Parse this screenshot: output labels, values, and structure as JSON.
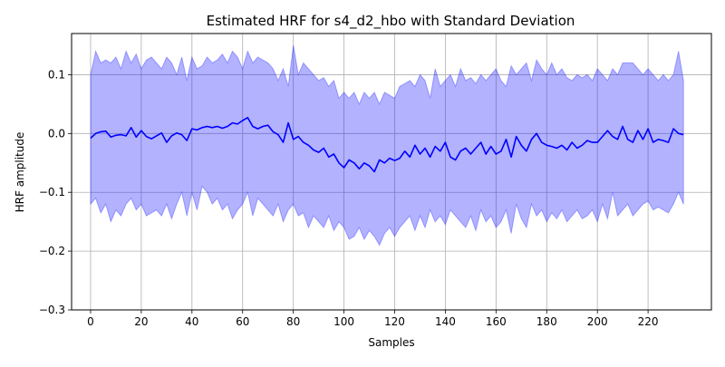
{
  "chart_data": {
    "type": "line",
    "title": "Estimated HRF for s4_d2_hbo with Standard Deviation",
    "xlabel": "Samples",
    "ylabel": "HRF amplitude",
    "xlim": [
      -7.5,
      245
    ],
    "ylim": [
      -0.3,
      0.17
    ],
    "xticks": [
      0,
      20,
      40,
      60,
      80,
      100,
      120,
      140,
      160,
      180,
      200,
      220
    ],
    "yticks": [
      -0.3,
      -0.2,
      -0.1,
      0.0,
      0.1
    ],
    "ytick_labels": [
      "−0.3",
      "−0.2",
      "−0.1",
      "0.0",
      "0.1"
    ],
    "grid": true,
    "series": [
      {
        "role": "mean",
        "color": "#0000ff",
        "x": [
          0,
          2,
          4,
          6,
          8,
          10,
          12,
          14,
          16,
          18,
          20,
          22,
          24,
          26,
          28,
          30,
          32,
          34,
          36,
          38,
          40,
          42,
          44,
          46,
          48,
          50,
          52,
          54,
          56,
          58,
          60,
          62,
          64,
          66,
          68,
          70,
          72,
          74,
          76,
          78,
          80,
          82,
          84,
          86,
          88,
          90,
          92,
          94,
          96,
          98,
          100,
          102,
          104,
          106,
          108,
          110,
          112,
          114,
          116,
          118,
          120,
          122,
          124,
          126,
          128,
          130,
          132,
          134,
          136,
          138,
          140,
          142,
          144,
          146,
          148,
          150,
          152,
          154,
          156,
          158,
          160,
          162,
          164,
          166,
          168,
          170,
          172,
          174,
          176,
          178,
          180,
          182,
          184,
          186,
          188,
          190,
          192,
          194,
          196,
          198,
          200,
          202,
          204,
          206,
          208,
          210,
          212,
          214,
          216,
          218,
          220,
          222,
          224,
          226,
          228,
          230,
          232,
          234
        ],
        "y": [
          -0.008,
          0.0,
          0.003,
          0.004,
          -0.006,
          -0.003,
          -0.002,
          -0.004,
          0.01,
          -0.006,
          0.005,
          -0.005,
          -0.009,
          -0.004,
          0.001,
          -0.015,
          -0.004,
          0.001,
          -0.002,
          -0.012,
          0.008,
          0.006,
          0.01,
          0.012,
          0.01,
          0.012,
          0.009,
          0.012,
          0.018,
          0.016,
          0.022,
          0.027,
          0.012,
          0.008,
          0.012,
          0.014,
          0.003,
          -0.002,
          -0.015,
          0.018,
          -0.01,
          -0.005,
          -0.015,
          -0.02,
          -0.028,
          -0.032,
          -0.025,
          -0.04,
          -0.035,
          -0.05,
          -0.058,
          -0.045,
          -0.05,
          -0.06,
          -0.05,
          -0.055,
          -0.065,
          -0.045,
          -0.05,
          -0.042,
          -0.046,
          -0.042,
          -0.03,
          -0.04,
          -0.02,
          -0.035,
          -0.025,
          -0.04,
          -0.022,
          -0.03,
          -0.015,
          -0.04,
          -0.045,
          -0.03,
          -0.025,
          -0.035,
          -0.025,
          -0.015,
          -0.035,
          -0.022,
          -0.035,
          -0.03,
          -0.01,
          -0.04,
          -0.005,
          -0.02,
          -0.03,
          -0.01,
          0.0,
          -0.015,
          -0.02,
          -0.022,
          -0.025,
          -0.02,
          -0.028,
          -0.015,
          -0.025,
          -0.02,
          -0.012,
          -0.015,
          -0.015,
          -0.005,
          0.005,
          -0.005,
          -0.01,
          0.012,
          -0.01,
          -0.015,
          0.005,
          -0.01,
          0.008,
          -0.015,
          -0.01,
          -0.012,
          -0.015,
          0.008,
          0.0,
          -0.002
        ]
      },
      {
        "role": "std-band-upper",
        "color": "#0000ff",
        "opacity": 0.3,
        "x": [
          0,
          2,
          4,
          6,
          8,
          10,
          12,
          14,
          16,
          18,
          20,
          22,
          24,
          26,
          28,
          30,
          32,
          34,
          36,
          38,
          40,
          42,
          44,
          46,
          48,
          50,
          52,
          54,
          56,
          58,
          60,
          62,
          64,
          66,
          68,
          70,
          72,
          74,
          76,
          78,
          80,
          82,
          84,
          86,
          88,
          90,
          92,
          94,
          96,
          98,
          100,
          102,
          104,
          106,
          108,
          110,
          112,
          114,
          116,
          118,
          120,
          122,
          124,
          126,
          128,
          130,
          132,
          134,
          136,
          138,
          140,
          142,
          144,
          146,
          148,
          150,
          152,
          154,
          156,
          158,
          160,
          162,
          164,
          166,
          168,
          170,
          172,
          174,
          176,
          178,
          180,
          182,
          184,
          186,
          188,
          190,
          192,
          194,
          196,
          198,
          200,
          202,
          204,
          206,
          208,
          210,
          212,
          214,
          216,
          218,
          220,
          222,
          224,
          226,
          228,
          230,
          232,
          234
        ],
        "y": [
          0.1,
          0.14,
          0.12,
          0.125,
          0.12,
          0.13,
          0.11,
          0.14,
          0.12,
          0.135,
          0.11,
          0.125,
          0.13,
          0.12,
          0.11,
          0.13,
          0.12,
          0.1,
          0.13,
          0.09,
          0.13,
          0.11,
          0.115,
          0.13,
          0.12,
          0.125,
          0.135,
          0.12,
          0.14,
          0.13,
          0.11,
          0.14,
          0.12,
          0.13,
          0.125,
          0.12,
          0.11,
          0.09,
          0.11,
          0.08,
          0.15,
          0.1,
          0.12,
          0.11,
          0.1,
          0.09,
          0.095,
          0.08,
          0.09,
          0.06,
          0.07,
          0.06,
          0.07,
          0.05,
          0.07,
          0.06,
          0.07,
          0.05,
          0.07,
          0.065,
          0.06,
          0.08,
          0.085,
          0.09,
          0.08,
          0.1,
          0.09,
          0.06,
          0.11,
          0.08,
          0.09,
          0.1,
          0.08,
          0.11,
          0.09,
          0.095,
          0.085,
          0.1,
          0.09,
          0.1,
          0.11,
          0.09,
          0.08,
          0.115,
          0.1,
          0.11,
          0.12,
          0.09,
          0.125,
          0.11,
          0.1,
          0.12,
          0.1,
          0.11,
          0.095,
          0.09,
          0.1,
          0.095,
          0.1,
          0.09,
          0.11,
          0.1,
          0.09,
          0.11,
          0.1,
          0.12,
          0.12,
          0.12,
          0.11,
          0.1,
          0.11,
          0.1,
          0.09,
          0.1,
          0.09,
          0.1,
          0.14,
          0.09
        ]
      },
      {
        "role": "std-band-lower",
        "color": "#0000ff",
        "opacity": 0.3,
        "x": [
          0,
          2,
          4,
          6,
          8,
          10,
          12,
          14,
          16,
          18,
          20,
          22,
          24,
          26,
          28,
          30,
          32,
          34,
          36,
          38,
          40,
          42,
          44,
          46,
          48,
          50,
          52,
          54,
          56,
          58,
          60,
          62,
          64,
          66,
          68,
          70,
          72,
          74,
          76,
          78,
          80,
          82,
          84,
          86,
          88,
          90,
          92,
          94,
          96,
          98,
          100,
          102,
          104,
          106,
          108,
          110,
          112,
          114,
          116,
          118,
          120,
          122,
          124,
          126,
          128,
          130,
          132,
          134,
          136,
          138,
          140,
          142,
          144,
          146,
          148,
          150,
          152,
          154,
          156,
          158,
          160,
          162,
          164,
          166,
          168,
          170,
          172,
          174,
          176,
          178,
          180,
          182,
          184,
          186,
          188,
          190,
          192,
          194,
          196,
          198,
          200,
          202,
          204,
          206,
          208,
          210,
          212,
          214,
          216,
          218,
          220,
          222,
          224,
          226,
          228,
          230,
          232,
          234
        ],
        "y": [
          -0.12,
          -0.11,
          -0.135,
          -0.12,
          -0.15,
          -0.13,
          -0.14,
          -0.12,
          -0.11,
          -0.13,
          -0.12,
          -0.14,
          -0.135,
          -0.13,
          -0.14,
          -0.12,
          -0.145,
          -0.12,
          -0.1,
          -0.14,
          -0.1,
          -0.13,
          -0.09,
          -0.1,
          -0.12,
          -0.11,
          -0.13,
          -0.12,
          -0.145,
          -0.13,
          -0.12,
          -0.1,
          -0.14,
          -0.11,
          -0.12,
          -0.13,
          -0.14,
          -0.12,
          -0.15,
          -0.13,
          -0.12,
          -0.14,
          -0.135,
          -0.16,
          -0.14,
          -0.15,
          -0.16,
          -0.14,
          -0.165,
          -0.15,
          -0.16,
          -0.18,
          -0.175,
          -0.16,
          -0.18,
          -0.165,
          -0.175,
          -0.19,
          -0.17,
          -0.16,
          -0.175,
          -0.16,
          -0.15,
          -0.14,
          -0.165,
          -0.14,
          -0.16,
          -0.13,
          -0.15,
          -0.14,
          -0.155,
          -0.13,
          -0.14,
          -0.15,
          -0.16,
          -0.14,
          -0.165,
          -0.13,
          -0.15,
          -0.14,
          -0.16,
          -0.15,
          -0.13,
          -0.17,
          -0.12,
          -0.145,
          -0.16,
          -0.12,
          -0.14,
          -0.13,
          -0.15,
          -0.135,
          -0.145,
          -0.13,
          -0.15,
          -0.14,
          -0.13,
          -0.145,
          -0.14,
          -0.13,
          -0.15,
          -0.12,
          -0.145,
          -0.1,
          -0.14,
          -0.13,
          -0.12,
          -0.14,
          -0.13,
          -0.12,
          -0.115,
          -0.13,
          -0.125,
          -0.13,
          -0.135,
          -0.12,
          -0.1,
          -0.12
        ]
      }
    ]
  }
}
